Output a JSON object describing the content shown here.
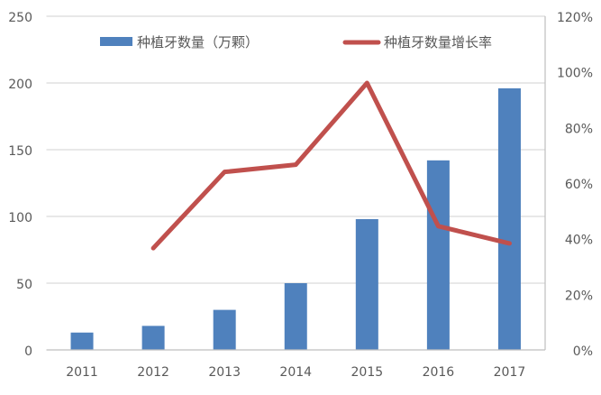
{
  "chart_data": {
    "type": "bar+line",
    "categories": [
      "2011",
      "2012",
      "2013",
      "2014",
      "2015",
      "2016",
      "2017"
    ],
    "series": [
      {
        "name": "种植牙数量（万颗）",
        "type": "bar",
        "axis": "left",
        "color": "#4F81BD",
        "values": [
          13,
          18,
          30,
          50,
          98,
          142,
          196
        ]
      },
      {
        "name": "种植牙数量增长率",
        "type": "line",
        "axis": "right",
        "color": "#C0504D",
        "values": [
          null,
          0.366,
          0.64,
          0.666,
          0.96,
          0.445,
          0.383
        ]
      }
    ],
    "left_axis": {
      "ylim": [
        0,
        250
      ],
      "ticks": [
        "0",
        "50",
        "100",
        "150",
        "200",
        "250"
      ]
    },
    "right_axis": {
      "ylim": [
        0,
        1.2
      ],
      "ticks": [
        "0%",
        "20%",
        "40%",
        "60%",
        "80%",
        "100%",
        "120%"
      ]
    },
    "grid": true,
    "legend": "top"
  }
}
